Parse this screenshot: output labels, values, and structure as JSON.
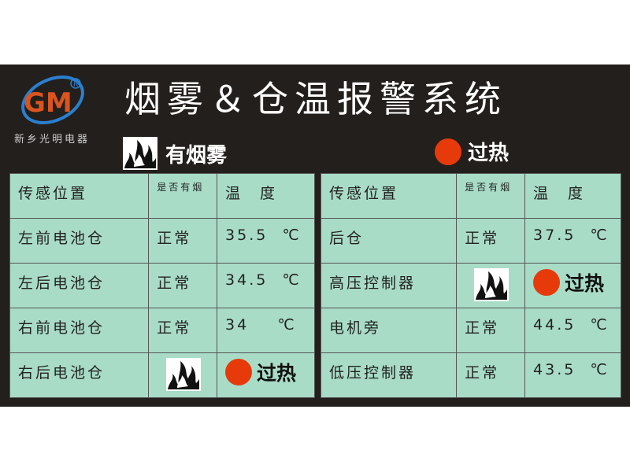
{
  "logo": {
    "letters": "GM",
    "company": "新乡光明电器"
  },
  "header": {
    "title": "烟雾＆仓温报警系统"
  },
  "legend": {
    "smoke_label": "有烟雾",
    "overheat_label": "过热"
  },
  "colors": {
    "table_bg": "#a9dcc7",
    "alarm": "#e63a0a",
    "panel": "#231f1c"
  },
  "columns": [
    "传感位置",
    "是否有烟",
    "温　度"
  ],
  "left_rows": [
    {
      "location": "左前电池仓",
      "smoke": "正常",
      "temp": "35.5  ℃"
    },
    {
      "location": "左后电池仓",
      "smoke": "正常",
      "temp": "34.5  ℃"
    },
    {
      "location": "右前电池仓",
      "smoke": "正常",
      "temp": "34    ℃"
    },
    {
      "location": "右后电池仓",
      "smoke": "fire-icon",
      "temp": "过热"
    }
  ],
  "right_rows": [
    {
      "location": "后仓",
      "smoke": "正常",
      "temp": "37.5  ℃"
    },
    {
      "location": "高压控制器",
      "smoke": "fire-icon",
      "temp": "过热"
    },
    {
      "location": "电机旁",
      "smoke": "正常",
      "temp": "44.5  ℃"
    },
    {
      "location": "低压控制器",
      "smoke": "正常",
      "temp": "43.5  ℃"
    }
  ]
}
